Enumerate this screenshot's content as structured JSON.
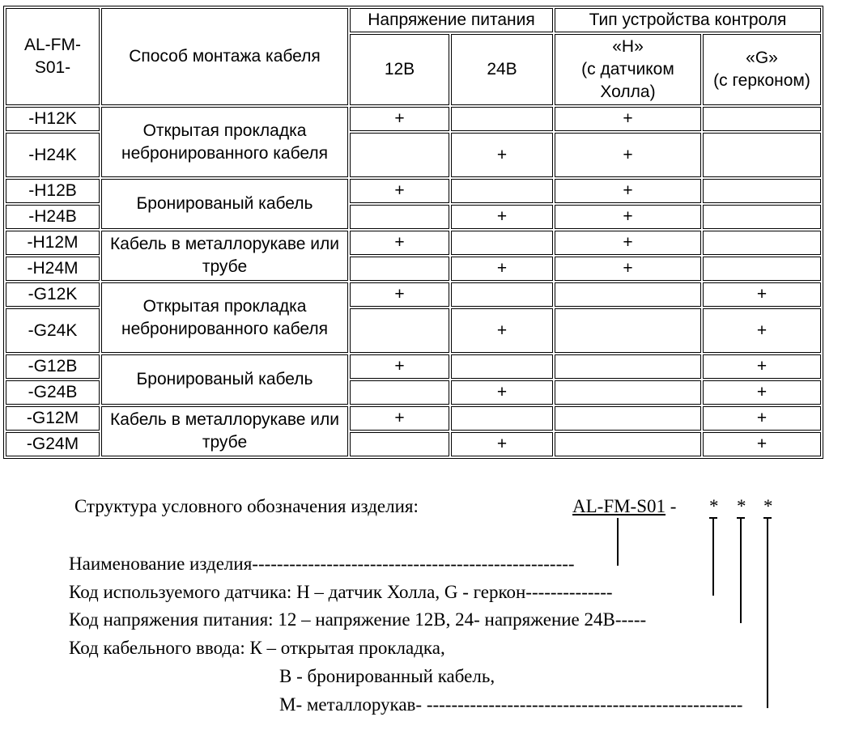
{
  "table": {
    "header": {
      "model_prefix": "AL-FM-S01-",
      "model_prefix_line1": "AL-FM-",
      "model_prefix_line2": "S01-",
      "method": "Способ монтажа кабеля",
      "voltage_group": "Напряжение питания",
      "device_group": "Тип устройства контроля",
      "v12": "12В",
      "v24": "24В",
      "h_line1": "«H»",
      "h_line2": "(с датчиком",
      "h_line3": "Холла)",
      "g_line1": "«G»",
      "g_line2": "(с герконом)"
    },
    "methods": [
      "Открытая прокладка небронированного кабеля",
      "Бронированый кабель",
      "Кабель в металлорукаве или трубе",
      "Открытая прокладка небронированного кабеля",
      "Бронированый кабель",
      "Кабель в металлорукаве или трубе"
    ],
    "rows": [
      {
        "code": "-H12K",
        "v12": "+",
        "v24": "",
        "h": "+",
        "g": ""
      },
      {
        "code": "-H24K",
        "v12": "",
        "v24": "+",
        "h": "+",
        "g": ""
      },
      {
        "code": "-H12B",
        "v12": "+",
        "v24": "",
        "h": "+",
        "g": ""
      },
      {
        "code": "-H24B",
        "v12": "",
        "v24": "+",
        "h": "+",
        "g": ""
      },
      {
        "code": "-H12M",
        "v12": "+",
        "v24": "",
        "h": "+",
        "g": ""
      },
      {
        "code": "-H24M",
        "v12": "",
        "v24": "+",
        "h": "+",
        "g": ""
      },
      {
        "code": "-G12K",
        "v12": "+",
        "v24": "",
        "h": "",
        "g": "+"
      },
      {
        "code": "-G24K",
        "v12": "",
        "v24": "+",
        "h": "",
        "g": "+"
      },
      {
        "code": "-G12B",
        "v12": "+",
        "v24": "",
        "h": "",
        "g": "+"
      },
      {
        "code": "-G24B",
        "v12": "",
        "v24": "+",
        "h": "",
        "g": "+"
      },
      {
        "code": "-G12M",
        "v12": "+",
        "v24": "",
        "h": "",
        "g": "+"
      },
      {
        "code": "-G24M",
        "v12": "",
        "v24": "+",
        "h": "",
        "g": "+"
      }
    ]
  },
  "structure": {
    "title": "Структура условного обозначения изделия:",
    "model": "AL-FM-S01",
    "sep": "-",
    "star1": "*",
    "star2": "*",
    "star3": "*",
    "line_name": "Наименование изделия----------------------------------------------------",
    "line_sensor": "Код используемого датчика: H – датчик Холла,  G - геркон--------------",
    "line_voltage": "Код напряжения питания: 12 – напряжение 12В, 24- напряжение 24В-----",
    "line_cable": "Код кабельного ввода: К – открытая прокладка,",
    "line_cable_b": "В - бронированный кабель,",
    "line_cable_m": "М- металлорукав- ---------------------------------------------------"
  }
}
